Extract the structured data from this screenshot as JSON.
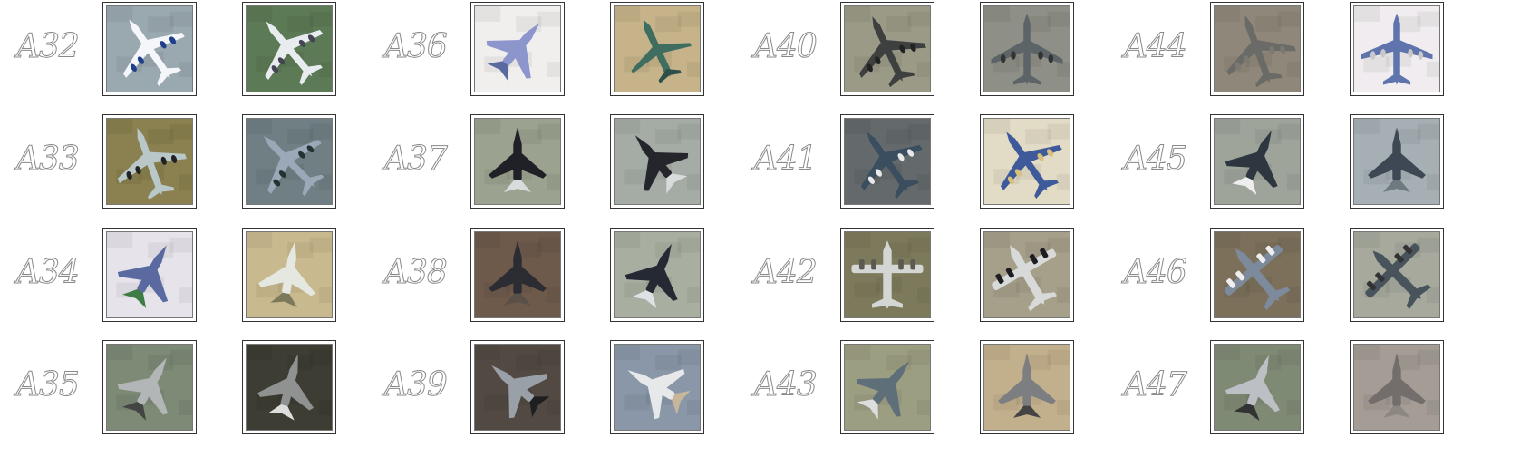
{
  "columns": [
    {
      "rows": [
        {
          "label": "A32",
          "thumbs": [
            {
              "bg": "#9aa8b0",
              "plane": "#f4f6fa",
              "accent": "#1f3f8a",
              "kind": "airliner",
              "rot": -35
            },
            {
              "bg": "#5c7a55",
              "plane": "#e8ecef",
              "accent": "#445",
              "kind": "airliner",
              "rot": -40
            }
          ]
        },
        {
          "label": "A33",
          "thumbs": [
            {
              "bg": "#8a8050",
              "plane": "#b9c7c8",
              "accent": "#222",
              "kind": "airliner",
              "rot": -20
            },
            {
              "bg": "#6f7f84",
              "plane": "#9ba8b8",
              "accent": "#233",
              "kind": "airliner",
              "rot": -45
            }
          ]
        },
        {
          "label": "A34",
          "thumbs": [
            {
              "bg": "#e6e4ea",
              "plane": "#5a6aa0",
              "accent": "#3f7b44",
              "kind": "fighter",
              "rot": 30
            },
            {
              "bg": "#c9b98e",
              "plane": "#e5e8e0",
              "accent": "#7c7a5a",
              "kind": "fighter",
              "rot": 10
            }
          ]
        },
        {
          "label": "A35",
          "thumbs": [
            {
              "bg": "#7d8a76",
              "plane": "#b2b6b6",
              "accent": "#444",
              "kind": "fighter",
              "rot": 30
            },
            {
              "bg": "#3e3d33",
              "plane": "#8f9290",
              "accent": "#ddd",
              "kind": "fighter",
              "rot": 15
            }
          ]
        }
      ]
    },
    {
      "rows": [
        {
          "label": "A36",
          "thumbs": [
            {
              "bg": "#f1eeee",
              "plane": "#8c95cc",
              "accent": "#5a6aa0",
              "kind": "fighter",
              "rot": 40
            },
            {
              "bg": "#c6b38a",
              "plane": "#3f6d60",
              "accent": "#2e4f47",
              "kind": "bizjet",
              "rot": -25
            }
          ]
        },
        {
          "label": "A37",
          "thumbs": [
            {
              "bg": "#9ba28f",
              "plane": "#1f2126",
              "accent": "#d9dcdc",
              "kind": "fighter",
              "rot": 0
            },
            {
              "bg": "#a4aca5",
              "plane": "#24262b",
              "accent": "#d9dcdc",
              "kind": "fighter",
              "rot": -40
            }
          ]
        },
        {
          "label": "A38",
          "thumbs": [
            {
              "bg": "#6d5a4b",
              "plane": "#2b2d33",
              "accent": "#5a5048",
              "kind": "fighter",
              "rot": 0
            },
            {
              "bg": "#a8aea0",
              "plane": "#252933",
              "accent": "#dfe2e4",
              "kind": "fighter",
              "rot": 25
            }
          ]
        },
        {
          "label": "A39",
          "thumbs": [
            {
              "bg": "#524a42",
              "plane": "#9aa0a8",
              "accent": "#1f1f22",
              "kind": "fighter",
              "rot": -50
            },
            {
              "bg": "#8a97a8",
              "plane": "#e6e8ea",
              "accent": "#c8b69a",
              "kind": "fighter",
              "rot": -60
            }
          ]
        }
      ]
    },
    {
      "rows": [
        {
          "label": "A40",
          "thumbs": [
            {
              "bg": "#9a9a86",
              "plane": "#3e4040",
              "accent": "#222",
              "kind": "bomber",
              "rot": -25
            },
            {
              "bg": "#8e8f86",
              "plane": "#5d6468",
              "accent": "#333",
              "kind": "bomber",
              "rot": 0
            }
          ]
        },
        {
          "label": "A41",
          "thumbs": [
            {
              "bg": "#646a6c",
              "plane": "#3a4e60",
              "accent": "#e8e8e8",
              "kind": "airliner",
              "rot": -35
            },
            {
              "bg": "#e2dbc6",
              "plane": "#3e5a9a",
              "accent": "#d8c07a",
              "kind": "airliner",
              "rot": -35
            }
          ]
        },
        {
          "label": "A42",
          "thumbs": [
            {
              "bg": "#7d7a5c",
              "plane": "#d4d6d4",
              "accent": "#5a5a50",
              "kind": "transport",
              "rot": 0
            },
            {
              "bg": "#a69f8a",
              "plane": "#d8d9d9",
              "accent": "#1e1e22",
              "kind": "transport",
              "rot": -30
            }
          ]
        },
        {
          "label": "A43",
          "thumbs": [
            {
              "bg": "#9c9e82",
              "plane": "#5e6f7a",
              "accent": "#ddd",
              "kind": "fighter",
              "rot": 40
            },
            {
              "bg": "#c2af8c",
              "plane": "#7c7e82",
              "accent": "#444",
              "kind": "fighter",
              "rot": 0
            }
          ]
        }
      ]
    },
    {
      "rows": [
        {
          "label": "A44",
          "thumbs": [
            {
              "bg": "#8f877a",
              "plane": "#6a6a66",
              "accent": "#7a7a72",
              "kind": "bomber",
              "rot": -20
            },
            {
              "bg": "#f0ecef",
              "plane": "#5f74ad",
              "accent": "#c8c8c8",
              "kind": "airliner",
              "rot": 0
            }
          ]
        },
        {
          "label": "A45",
          "thumbs": [
            {
              "bg": "#9ea49a",
              "plane": "#2e3640",
              "accent": "#eee",
              "kind": "fighter",
              "rot": 25
            },
            {
              "bg": "#a6afb4",
              "plane": "#3e4854",
              "accent": "#6e7a80",
              "kind": "fighter",
              "rot": 0
            }
          ]
        },
        {
          "label": "A46",
          "thumbs": [
            {
              "bg": "#7c705a",
              "plane": "#7d8a9c",
              "accent": "#eee",
              "kind": "transport",
              "rot": -40
            },
            {
              "bg": "#a6a99c",
              "plane": "#48535c",
              "accent": "#333",
              "kind": "transport",
              "rot": -45
            }
          ]
        },
        {
          "label": "A47",
          "thumbs": [
            {
              "bg": "#7f8a75",
              "plane": "#bcc0c4",
              "accent": "#333",
              "kind": "fighter",
              "rot": 20
            },
            {
              "bg": "#a49c95",
              "plane": "#736e6c",
              "accent": "#8d8782",
              "kind": "fighter",
              "rot": 0
            }
          ]
        }
      ]
    }
  ]
}
